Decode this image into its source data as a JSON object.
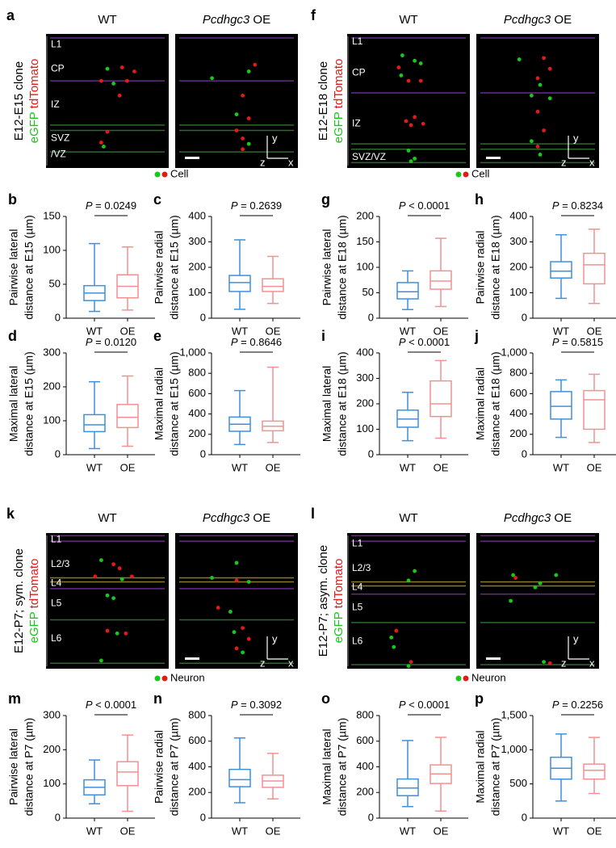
{
  "axis_glyphs": {
    "y": "y",
    "z": "z",
    "x": "x"
  },
  "image_panels": [
    {
      "label": "a",
      "wt_title": "WT",
      "oe_title": {
        "gene": "Pcdhgc3",
        "suffix": "OE"
      },
      "ylabel": {
        "line1": "E12-E15 clone",
        "green": "eGFP",
        "red": "tdTomato"
      },
      "layers": [
        "L1",
        "CP",
        "IZ",
        "SVZ",
        "/VZ"
      ],
      "legend": "Cell"
    },
    {
      "label": "f",
      "wt_title": "WT",
      "oe_title": {
        "gene": "Pcdhgc3",
        "suffix": "OE"
      },
      "ylabel": {
        "line1": "E12-E18 clone",
        "green": "eGFP",
        "red": "tdTomato"
      },
      "layers": [
        "L1",
        "CP",
        "IZ",
        "SVZ/VZ"
      ],
      "legend": "Cell"
    },
    {
      "label": "k",
      "wt_title": "WT",
      "oe_title": {
        "gene": "Pcdhgc3",
        "suffix": "OE"
      },
      "ylabel": {
        "line1": "E12-P7; sym. clone",
        "green": "eGFP",
        "red": "tdTomato"
      },
      "layers": [
        "L1",
        "L2/3",
        "L4",
        "L5",
        "L6"
      ],
      "legend": "Neuron"
    },
    {
      "label": "l",
      "wt_title": "WT",
      "oe_title": {
        "gene": "Pcdhgc3",
        "suffix": "OE"
      },
      "ylabel": {
        "line1": "E12-P7; asym. clone",
        "green": "eGFP",
        "red": "tdTomato"
      },
      "layers": [
        "L1",
        "L2/3",
        "L4",
        "L5",
        "L6"
      ],
      "legend": "Neuron"
    }
  ],
  "chart_data": [
    {
      "type": "box",
      "label": "b",
      "ylabel": [
        "Pairwise lateral",
        "distance at E15 (µm)"
      ],
      "p_symbol": "P",
      "p_value": "= 0.0249",
      "categories": [
        "WT",
        "OE"
      ],
      "colors": [
        "#3d8fe0",
        "#f29191"
      ],
      "ylim": [
        0,
        150
      ],
      "yticks": [
        0,
        50,
        100,
        150
      ],
      "boxes": [
        {
          "min": 10,
          "q1": 26,
          "median": 37,
          "q3": 48,
          "max": 110
        },
        {
          "min": 12,
          "q1": 30,
          "median": 47,
          "q3": 64,
          "max": 105
        }
      ]
    },
    {
      "type": "box",
      "label": "c",
      "ylabel": [
        "Pairwise radial",
        "distance at E15 (µm)"
      ],
      "p_symbol": "P",
      "p_value": "= 0.2639",
      "categories": [
        "WT",
        "OE"
      ],
      "colors": [
        "#3d8fe0",
        "#f29191"
      ],
      "ylim": [
        0,
        400
      ],
      "yticks": [
        0,
        100,
        200,
        300,
        400
      ],
      "boxes": [
        {
          "min": 35,
          "q1": 105,
          "median": 140,
          "q3": 168,
          "max": 308
        },
        {
          "min": 58,
          "q1": 105,
          "median": 125,
          "q3": 155,
          "max": 243
        }
      ]
    },
    {
      "type": "box",
      "label": "g",
      "ylabel": [
        "Pairwise lateral",
        "distance at E18 (µm)"
      ],
      "p_symbol": "P",
      "p_value": "< 0.0001",
      "categories": [
        "WT",
        "OE"
      ],
      "colors": [
        "#3d8fe0",
        "#f29191"
      ],
      "ylim": [
        0,
        200
      ],
      "yticks": [
        0,
        50,
        100,
        150,
        200
      ],
      "boxes": [
        {
          "min": 17,
          "q1": 38,
          "median": 52,
          "q3": 70,
          "max": 93
        },
        {
          "min": 23,
          "q1": 57,
          "median": 73,
          "q3": 93,
          "max": 157
        }
      ]
    },
    {
      "type": "box",
      "label": "h",
      "ylabel": [
        "Pairwise radial",
        "distance at E18 (µm)"
      ],
      "p_symbol": "P",
      "p_value": "= 0.8234",
      "categories": [
        "WT",
        "OE"
      ],
      "colors": [
        "#3d8fe0",
        "#f29191"
      ],
      "ylim": [
        0,
        400
      ],
      "yticks": [
        0,
        100,
        200,
        300,
        400
      ],
      "boxes": [
        {
          "min": 78,
          "q1": 158,
          "median": 185,
          "q3": 222,
          "max": 328
        },
        {
          "min": 58,
          "q1": 135,
          "median": 210,
          "q3": 255,
          "max": 350
        }
      ]
    },
    {
      "type": "box",
      "label": "d",
      "ylabel": [
        "Maximal lateral",
        "distance at E15 (µm)"
      ],
      "p_symbol": "P",
      "p_value": "= 0.0120",
      "categories": [
        "WT",
        "OE"
      ],
      "colors": [
        "#3d8fe0",
        "#f29191"
      ],
      "ylim": [
        0,
        300
      ],
      "yticks": [
        0,
        100,
        200,
        300
      ],
      "boxes": [
        {
          "min": 18,
          "q1": 68,
          "median": 88,
          "q3": 118,
          "max": 215
        },
        {
          "min": 25,
          "q1": 80,
          "median": 110,
          "q3": 148,
          "max": 232
        }
      ]
    },
    {
      "type": "box",
      "label": "e",
      "ylabel": [
        "Maximal radial",
        "distance at E15 (µm)"
      ],
      "p_symbol": "P",
      "p_value": "= 0.8646",
      "categories": [
        "WT",
        "OE"
      ],
      "colors": [
        "#3d8fe0",
        "#f29191"
      ],
      "ylim": [
        0,
        1000
      ],
      "yticks": [
        0,
        200,
        400,
        600,
        800,
        {
          "value": 1000,
          "label": "1,000"
        }
      ],
      "boxes": [
        {
          "min": 100,
          "q1": 230,
          "median": 300,
          "q3": 370,
          "max": 630
        },
        {
          "min": 120,
          "q1": 235,
          "median": 280,
          "q3": 330,
          "max": 860
        }
      ]
    },
    {
      "type": "box",
      "label": "i",
      "ylabel": [
        "Maximal lateral",
        "distance at E18 (µm)"
      ],
      "p_symbol": "P",
      "p_value": "< 0.0001",
      "categories": [
        "WT",
        "OE"
      ],
      "colors": [
        "#3d8fe0",
        "#f29191"
      ],
      "ylim": [
        0,
        400
      ],
      "yticks": [
        0,
        100,
        200,
        300,
        400
      ],
      "boxes": [
        {
          "min": 55,
          "q1": 108,
          "median": 140,
          "q3": 175,
          "max": 245
        },
        {
          "min": 65,
          "q1": 150,
          "median": 200,
          "q3": 290,
          "max": 370
        }
      ]
    },
    {
      "type": "box",
      "label": "j",
      "ylabel": [
        "Maximal radial",
        "distance at E18 (µm)"
      ],
      "p_symbol": "P",
      "p_value": "= 0.5815",
      "categories": [
        "WT",
        "OE"
      ],
      "colors": [
        "#3d8fe0",
        "#f29191"
      ],
      "ylim": [
        0,
        1000
      ],
      "yticks": [
        0,
        200,
        400,
        600,
        800,
        {
          "value": 1000,
          "label": "1,000"
        }
      ],
      "boxes": [
        {
          "min": 170,
          "q1": 350,
          "median": 475,
          "q3": 620,
          "max": 735
        },
        {
          "min": 120,
          "q1": 250,
          "median": 540,
          "q3": 630,
          "max": 790
        }
      ]
    },
    {
      "type": "box",
      "label": "m",
      "ylabel": [
        "Pairwise lateral",
        "distance at P7 (µm)"
      ],
      "p_symbol": "P",
      "p_value": "< 0.0001",
      "categories": [
        "WT",
        "OE"
      ],
      "colors": [
        "#3d8fe0",
        "#f29191"
      ],
      "ylim": [
        0,
        300
      ],
      "yticks": [
        0,
        100,
        200,
        300
      ],
      "boxes": [
        {
          "min": 42,
          "q1": 68,
          "median": 90,
          "q3": 112,
          "max": 170
        },
        {
          "min": 20,
          "q1": 95,
          "median": 135,
          "q3": 165,
          "max": 243
        }
      ]
    },
    {
      "type": "box",
      "label": "n",
      "ylabel": [
        "Pairwise radial",
        "distance at P7 (µm)"
      ],
      "p_symbol": "P",
      "p_value": "= 0.3092",
      "categories": [
        "WT",
        "OE"
      ],
      "colors": [
        "#3d8fe0",
        "#f29191"
      ],
      "ylim": [
        0,
        800
      ],
      "yticks": [
        0,
        200,
        400,
        600,
        800
      ],
      "boxes": [
        {
          "min": 120,
          "q1": 245,
          "median": 300,
          "q3": 380,
          "max": 625
        },
        {
          "min": 150,
          "q1": 240,
          "median": 290,
          "q3": 335,
          "max": 505
        }
      ]
    },
    {
      "type": "box",
      "label": "o",
      "ylabel": [
        "Maximal lateral",
        "distance at P7 (µm)"
      ],
      "p_symbol": "P",
      "p_value": "< 0.0001",
      "categories": [
        "WT",
        "OE"
      ],
      "colors": [
        "#3d8fe0",
        "#f29191"
      ],
      "ylim": [
        0,
        800
      ],
      "yticks": [
        0,
        200,
        400,
        600,
        800
      ],
      "boxes": [
        {
          "min": 90,
          "q1": 175,
          "median": 235,
          "q3": 305,
          "max": 605
        },
        {
          "min": 55,
          "q1": 270,
          "median": 345,
          "q3": 415,
          "max": 630
        }
      ]
    },
    {
      "type": "box",
      "label": "p",
      "ylabel": [
        "Maximal radial",
        "distance at P7 (µm)"
      ],
      "p_symbol": "P",
      "p_value": "= 0.2256",
      "categories": [
        "WT",
        "OE"
      ],
      "colors": [
        "#3d8fe0",
        "#f29191"
      ],
      "ylim": [
        0,
        1500
      ],
      "yticks": [
        0,
        500,
        {
          "value": 1000,
          "label": "1,000"
        },
        {
          "value": 1500,
          "label": "1,500"
        }
      ],
      "boxes": [
        {
          "min": 250,
          "q1": 570,
          "median": 730,
          "q3": 890,
          "max": 1230
        },
        {
          "min": 360,
          "q1": 570,
          "median": 700,
          "q3": 790,
          "max": 1180
        }
      ]
    }
  ]
}
